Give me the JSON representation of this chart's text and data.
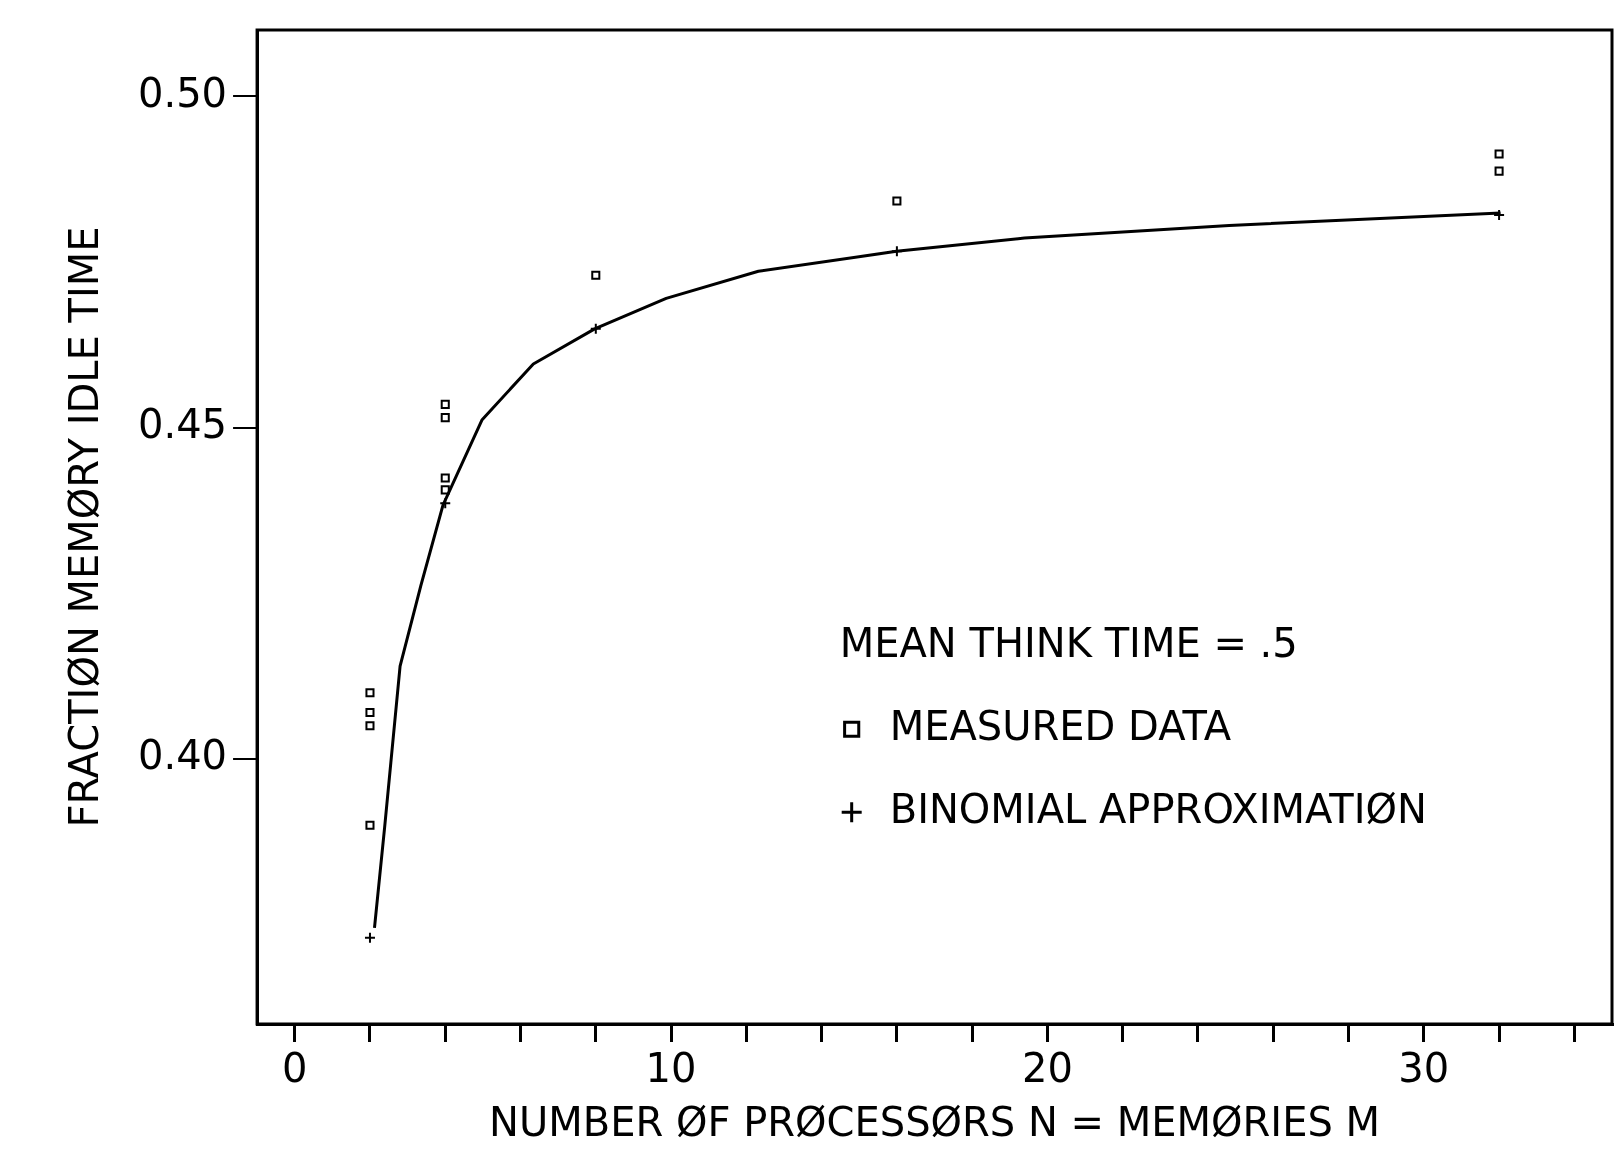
{
  "chart_data": {
    "type": "scatter",
    "xlabel": "NUMBER ØF PRØCESSØRS N = MEMØRIES M",
    "ylabel": "FRACTIØN MEMØRY IDLE TIME",
    "legend_title": "MEAN THINK TIME = .5",
    "legend": "right",
    "grid": false,
    "xlim": [
      -1,
      35
    ],
    "ylim": [
      0.36,
      0.51
    ],
    "xticks": [
      0,
      {
        "value": 2,
        "label": null
      },
      {
        "value": 4,
        "label": null
      },
      {
        "value": 6,
        "label": null
      },
      {
        "value": 8,
        "label": null
      },
      10,
      {
        "value": 12,
        "label": null
      },
      {
        "value": 14,
        "label": null
      },
      {
        "value": 16,
        "label": null
      },
      {
        "value": 18,
        "label": null
      },
      20,
      {
        "value": 22,
        "label": null
      },
      {
        "value": 24,
        "label": null
      },
      {
        "value": 26,
        "label": null
      },
      {
        "value": 28,
        "label": null
      },
      30,
      {
        "value": 32,
        "label": null
      },
      {
        "value": 34,
        "label": null
      }
    ],
    "yticks": [
      {
        "value": 0.4,
        "label": "0.40"
      },
      {
        "value": 0.45,
        "label": "0.45"
      },
      {
        "value": 0.5,
        "label": "0.50"
      }
    ],
    "series": [
      {
        "name": "MEASURED DATA",
        "marker": "square",
        "color": "#000000",
        "x": [
          2,
          2,
          2,
          2,
          4,
          4,
          4,
          4,
          8,
          16,
          32,
          32
        ],
        "values": [
          0.41,
          0.407,
          0.405,
          0.39,
          0.4535,
          0.4515,
          0.4424,
          0.4406,
          0.473,
          0.4842,
          0.4913,
          0.4887
        ]
      },
      {
        "name": "BINOMIAL APPROXIMATIØN",
        "marker": "cross",
        "color": "#000000",
        "x": [
          2,
          4,
          8,
          16,
          32
        ],
        "values": [
          0.373,
          0.4386,
          0.4649,
          0.4766,
          0.4821
        ]
      },
      {
        "type": "line",
        "marker": "none",
        "color": "#000000",
        "x": [
          2.12,
          2.39,
          2.8,
          3.35,
          3.94,
          4.98,
          6.34,
          7.97,
          9.87,
          12.32,
          15.99,
          19.39,
          24.83,
          32.04
        ],
        "values": [
          0.3745,
          0.3897,
          0.414,
          0.4261,
          0.4383,
          0.4512,
          0.4596,
          0.4649,
          0.4695,
          0.4736,
          0.4766,
          0.4786,
          0.4805,
          0.4824
        ]
      }
    ]
  }
}
